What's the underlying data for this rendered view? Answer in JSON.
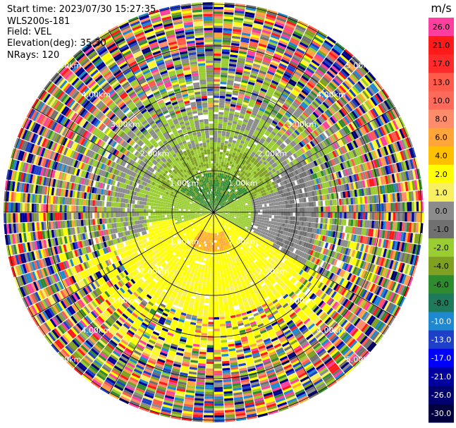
{
  "header": {
    "start_time": "Start time: 2023/07/30 15:27:35",
    "instrument": "WLS200s-181",
    "field": "Field: VEL",
    "elevation": "Elevation(deg): 35.30",
    "nrays": "NRays: 120"
  },
  "colorbar": {
    "unit": "m/s",
    "ticks": [
      "26.0",
      "21.0",
      "17.0",
      "13.0",
      "10.0",
      "8.0",
      "6.0",
      "4.0",
      "2.0",
      "1.0",
      "0.0",
      "-1.0",
      "-2.0",
      "-4.0",
      "-6.0",
      "-8.0",
      "-10.0",
      "-13.0",
      "-17.0",
      "-21.0",
      "-26.0",
      "-30.0"
    ],
    "colors": [
      "#ff3fa0",
      "#ff1a1a",
      "#ff2a2a",
      "#ff5a4a",
      "#ff6a5a",
      "#ff8c6a",
      "#ffa53a",
      "#ffc000",
      "#ffff00",
      "#f8f060",
      "#8c8c8c",
      "#707070",
      "#9acd32",
      "#7fa020",
      "#2e8b2e",
      "#1e7a5a",
      "#1e88d0",
      "#1e40c8",
      "#0000ff",
      "#0000a0",
      "#000070",
      "#000040"
    ]
  },
  "chart_data": {
    "type": "ppi",
    "field": "VEL",
    "unit": "m/s",
    "nrays": 120,
    "elevation_deg": 35.3,
    "range_rings_km": [
      1.0,
      2.0,
      3.0,
      4.0,
      5.0
    ],
    "range_labels": [
      "1.00km",
      "2.00km",
      "3.00km",
      "4.00km",
      "5.00km"
    ],
    "spoke_azimuths_deg": [
      0,
      30,
      60,
      90,
      120,
      150,
      180,
      210,
      240,
      270,
      300,
      330
    ],
    "velocity_field": {
      "inner_core": "green (-6 to -2 m/s) toward north",
      "south_sector": "yellow/orange (2 to 6 m/s)",
      "middle_band": "gray (0 to 1 m/s) and light green",
      "outer_region": "noisy mixed colors (unfiltered)"
    }
  }
}
